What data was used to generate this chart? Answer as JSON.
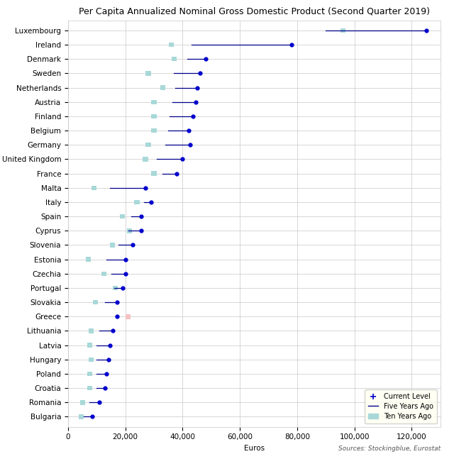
{
  "title": "Per Capita Annualized Nominal Gross Domestic Product (Second Quarter 2019)",
  "xlabel": "Euros",
  "source_text": "Sources: Stockingblue, Eurostat",
  "countries": [
    "Luxembourg",
    "Ireland",
    "Denmark",
    "Sweden",
    "Netherlands",
    "Austria",
    "Finland",
    "Belgium",
    "Germany",
    "United Kingdom",
    "France",
    "Malta",
    "Italy",
    "Spain",
    "Cyprus",
    "Slovenia",
    "Estonia",
    "Czechia",
    "Portugal",
    "Slovakia",
    "Greece",
    "Lithuania",
    "Latvia",
    "Hungary",
    "Poland",
    "Croatia",
    "Romania",
    "Bulgaria"
  ],
  "current": [
    125000,
    78000,
    48000,
    46000,
    45000,
    44500,
    43500,
    42000,
    42500,
    40000,
    38000,
    27000,
    29000,
    25500,
    25500,
    22500,
    20000,
    20000,
    19000,
    17000,
    17000,
    15500,
    14500,
    14000,
    13500,
    13000,
    11000,
    8500
  ],
  "five_years_ago": [
    90000,
    43000,
    41500,
    37000,
    37500,
    36500,
    35500,
    35000,
    34000,
    31000,
    33000,
    14500,
    26500,
    22000,
    21000,
    17500,
    13500,
    15000,
    16000,
    13000,
    16500,
    11000,
    10000,
    10000,
    10000,
    10000,
    7500,
    5500
  ],
  "ten_years_ago": [
    96000,
    36000,
    37000,
    28000,
    33000,
    30000,
    30000,
    30000,
    28000,
    27000,
    30000,
    9000,
    24000,
    19000,
    21500,
    15500,
    7000,
    12500,
    16500,
    9500,
    21000,
    8000,
    7500,
    8000,
    7500,
    7500,
    5000,
    4500
  ],
  "color_current": "#0000CD",
  "color_line": "#00008B",
  "color_five": "#00008B",
  "color_ten_normal": "#A8D8D8",
  "color_ten_decline": "#F4C2C2",
  "xlim": [
    0,
    130000
  ],
  "xticks": [
    0,
    20000,
    40000,
    60000,
    80000,
    100000,
    120000
  ],
  "xtick_labels": [
    "0",
    "20,000",
    "40,000",
    "60,000",
    "80,000",
    "100,000",
    "120,000"
  ],
  "background_color": "#FFFFFF",
  "grid_color": "#C8C8C8",
  "title_fontsize": 9,
  "label_fontsize": 7.5,
  "tick_fontsize": 7.5,
  "legend_bg": "#FFFFF0"
}
